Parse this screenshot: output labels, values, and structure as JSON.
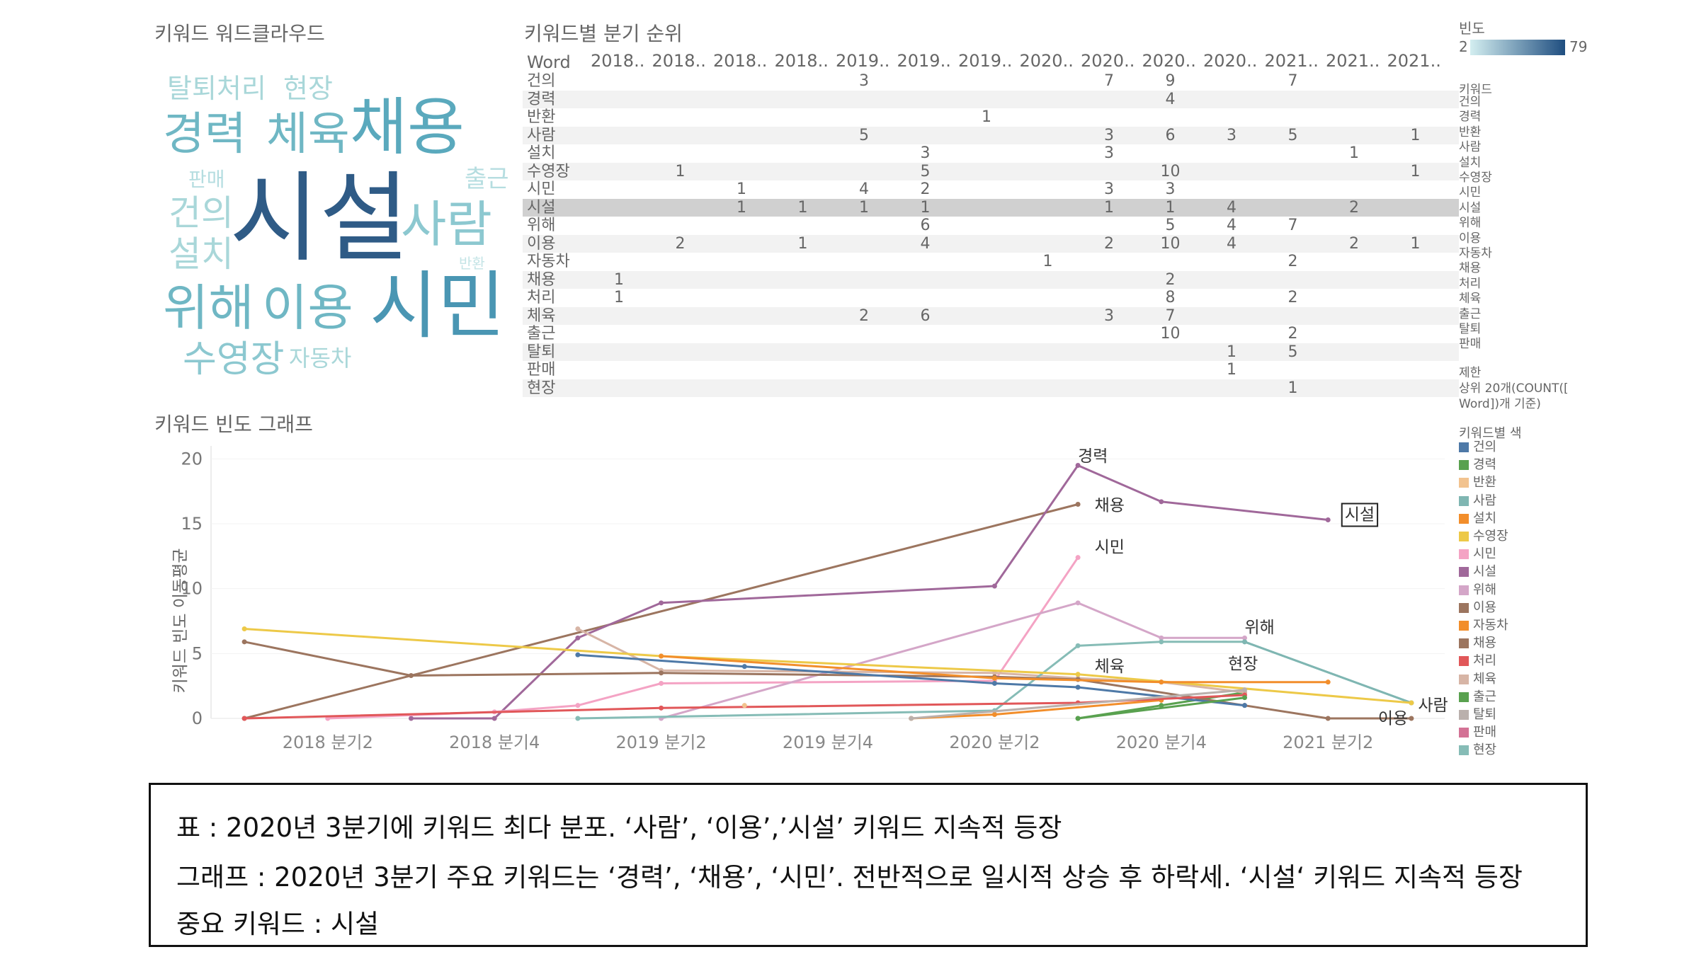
{
  "wordcloud": {
    "title": "키워드 워드클라우드",
    "words": [
      {
        "text": "탈퇴처리",
        "color": "#a9d7d9",
        "size": 38
      },
      {
        "text": "현장",
        "color": "#a9d7d9",
        "size": 38
      },
      {
        "text": "경력",
        "color": "#6fb7c4",
        "size": 64
      },
      {
        "text": "체육",
        "color": "#6fb7c4",
        "size": 64
      },
      {
        "text": "채용",
        "color": "#5aa9bd",
        "size": 88
      },
      {
        "text": "판매",
        "color": "#b5dde0",
        "size": 28
      },
      {
        "text": "출근",
        "color": "#b5dde0",
        "size": 34
      },
      {
        "text": "건의",
        "color": "#a9d7d9",
        "size": 50
      },
      {
        "text": "시설",
        "color": "#2f5b86",
        "size": 138
      },
      {
        "text": "사람",
        "color": "#8cc8d0",
        "size": 70
      },
      {
        "text": "설치",
        "color": "#a9d7d9",
        "size": 50
      },
      {
        "text": "반환",
        "color": "#c4e4e6",
        "size": 20
      },
      {
        "text": "위해",
        "color": "#6fb7c4",
        "size": 70
      },
      {
        "text": "이용",
        "color": "#6fb7c4",
        "size": 70
      },
      {
        "text": "시민",
        "color": "#4a96b3",
        "size": 104
      },
      {
        "text": "수영장",
        "color": "#8cc8d0",
        "size": 52
      },
      {
        "text": "자동차",
        "color": "#a9d7d9",
        "size": 32
      }
    ]
  },
  "rank_table": {
    "title": "키워드별 분기 순위",
    "word_header": "Word",
    "columns": [
      "2018..",
      "2018..",
      "2018..",
      "2018..",
      "2019..",
      "2019..",
      "2019..",
      "2020..",
      "2020..",
      "2020..",
      "2020..",
      "2021..",
      "2021..",
      "2021.."
    ],
    "rows": [
      {
        "word": "건의",
        "cells": [
          "",
          "",
          "",
          "",
          "3",
          "",
          "",
          "",
          "7",
          "9",
          "",
          "7",
          "",
          ""
        ]
      },
      {
        "word": "경력",
        "cells": [
          "",
          "",
          "",
          "",
          "",
          "",
          "",
          "",
          "",
          "4",
          "",
          "",
          "",
          ""
        ]
      },
      {
        "word": "반환",
        "cells": [
          "",
          "",
          "",
          "",
          "",
          "",
          "1",
          "",
          "",
          "",
          "",
          "",
          "",
          ""
        ]
      },
      {
        "word": "사람",
        "cells": [
          "",
          "",
          "",
          "",
          "5",
          "",
          "",
          "",
          "3",
          "6",
          "3",
          "5",
          "",
          "1"
        ]
      },
      {
        "word": "설치",
        "cells": [
          "",
          "",
          "",
          "",
          "",
          "3",
          "",
          "",
          "3",
          "",
          "",
          "",
          "1",
          ""
        ]
      },
      {
        "word": "수영장",
        "cells": [
          "",
          "1",
          "",
          "",
          "",
          "5",
          "",
          "",
          "",
          "10",
          "",
          "",
          "",
          "1"
        ]
      },
      {
        "word": "시민",
        "cells": [
          "",
          "",
          "1",
          "",
          "4",
          "2",
          "",
          "",
          "3",
          "3",
          "",
          "",
          "",
          ""
        ]
      },
      {
        "word": "시설",
        "cells": [
          "",
          "",
          "1",
          "1",
          "1",
          "1",
          "",
          "",
          "1",
          "1",
          "4",
          "",
          "2",
          ""
        ]
      },
      {
        "word": "위해",
        "cells": [
          "",
          "",
          "",
          "",
          "",
          "6",
          "",
          "",
          "",
          "5",
          "4",
          "7",
          "",
          ""
        ]
      },
      {
        "word": "이용",
        "cells": [
          "",
          "2",
          "",
          "1",
          "",
          "4",
          "",
          "",
          "2",
          "10",
          "4",
          "",
          "2",
          "1"
        ]
      },
      {
        "word": "자동차",
        "cells": [
          "",
          "",
          "",
          "",
          "",
          "",
          "",
          "1",
          "",
          "",
          "",
          "2",
          "",
          ""
        ]
      },
      {
        "word": "채용",
        "cells": [
          "1",
          "",
          "",
          "",
          "",
          "",
          "",
          "",
          "",
          "2",
          "",
          "",
          "",
          ""
        ]
      },
      {
        "word": "처리",
        "cells": [
          "1",
          "",
          "",
          "",
          "",
          "",
          "",
          "",
          "",
          "8",
          "",
          "2",
          "",
          ""
        ]
      },
      {
        "word": "체육",
        "cells": [
          "",
          "",
          "",
          "",
          "2",
          "6",
          "",
          "",
          "3",
          "7",
          "",
          "",
          "",
          ""
        ]
      },
      {
        "word": "출근",
        "cells": [
          "",
          "",
          "",
          "",
          "",
          "",
          "",
          "",
          "",
          "10",
          "",
          "2",
          "",
          ""
        ]
      },
      {
        "word": "탈퇴",
        "cells": [
          "",
          "",
          "",
          "",
          "",
          "",
          "",
          "",
          "",
          "",
          "1",
          "5",
          "",
          ""
        ]
      },
      {
        "word": "판매",
        "cells": [
          "",
          "",
          "",
          "",
          "",
          "",
          "",
          "",
          "",
          "",
          "1",
          "",
          "",
          ""
        ]
      },
      {
        "word": "현장",
        "cells": [
          "",
          "",
          "",
          "",
          "",
          "",
          "",
          "",
          "",
          "",
          "",
          "1",
          "",
          ""
        ]
      }
    ],
    "highlight_row": "시설"
  },
  "freq_legend": {
    "title": "빈도",
    "min": "2",
    "max": "79",
    "color_low": "#d3eef0",
    "color_high": "#1f4e80"
  },
  "filter_legend": {
    "title": "키워드",
    "items": [
      "건의",
      "경력",
      "반환",
      "사람",
      "설치",
      "수영장",
      "시민",
      "시설",
      "위해",
      "이용",
      "자동차",
      "채용",
      "처리",
      "체육",
      "출근",
      "탈퇴",
      "판매"
    ],
    "limit_title": "제한",
    "limit_text_1": "상위 20개(COUNT([",
    "limit_text_2": "Word])개 기준)"
  },
  "color_legend": {
    "title": "키워드별 색",
    "items": [
      {
        "name": "건의",
        "color": "#4e79a7"
      },
      {
        "name": "경력",
        "color": "#59a14f"
      },
      {
        "name": "반환",
        "color": "#f2c38f"
      },
      {
        "name": "사람",
        "color": "#7fb6b2"
      },
      {
        "name": "설치",
        "color": "#f28e2b"
      },
      {
        "name": "수영장",
        "color": "#edc948"
      },
      {
        "name": "시민",
        "color": "#f4a3c4"
      },
      {
        "name": "시설",
        "color": "#a0689a"
      },
      {
        "name": "위해",
        "color": "#d4a6c8"
      },
      {
        "name": "이용",
        "color": "#9c755f"
      },
      {
        "name": "자동차",
        "color": "#f28e2b"
      },
      {
        "name": "채용",
        "color": "#9c755f"
      },
      {
        "name": "처리",
        "color": "#e15759"
      },
      {
        "name": "체육",
        "color": "#d7b5a6"
      },
      {
        "name": "출근",
        "color": "#59a14f"
      },
      {
        "name": "탈퇴",
        "color": "#bab0ac"
      },
      {
        "name": "판매",
        "color": "#d37295"
      },
      {
        "name": "현장",
        "color": "#86bcb6"
      }
    ]
  },
  "chart_data": {
    "type": "line",
    "title": "키워드 빈도 그래프",
    "ylabel": "키워드 빈도 이동평균",
    "ylim": [
      0,
      21
    ],
    "x_ticks": [
      "2018 분기2",
      "2018 분기4",
      "2019 분기2",
      "2019 분기4",
      "2020 분기2",
      "2020 분기4",
      "2021 분기2"
    ],
    "x_range": [
      2017.9,
      2021.6
    ],
    "x_tick_values": [
      2018.25,
      2018.75,
      2019.25,
      2019.75,
      2020.25,
      2020.75,
      2021.25
    ],
    "y_ticks": [
      "0",
      "5",
      "10",
      "15",
      "20"
    ],
    "y_tick_values": [
      0,
      5,
      10,
      15,
      20
    ],
    "series": [
      {
        "name": "채용",
        "color": "#9c755f",
        "points": [
          [
            2018.0,
            0
          ],
          [
            2020.5,
            16.5
          ]
        ]
      },
      {
        "name": "경력",
        "color": "#59a14f",
        "points": [
          [
            2020.5,
            0
          ],
          [
            2020.75,
            1
          ],
          [
            2021.0,
            2
          ]
        ]
      },
      {
        "name": "시설",
        "color": "#a0689a",
        "points": [
          [
            2018.5,
            0
          ],
          [
            2018.75,
            0
          ],
          [
            2019.0,
            6.2
          ],
          [
            2019.25,
            8.9
          ],
          [
            2020.25,
            10.2
          ],
          [
            2020.5,
            19.5
          ],
          [
            2020.75,
            16.7
          ],
          [
            2021.25,
            15.3
          ]
        ]
      },
      {
        "name": "시민",
        "color": "#f4a3c4",
        "points": [
          [
            2018.25,
            0
          ],
          [
            2018.75,
            0.5
          ],
          [
            2019.0,
            1
          ],
          [
            2019.25,
            2.7
          ],
          [
            2020.25,
            2.9
          ],
          [
            2020.5,
            12.4
          ]
        ]
      },
      {
        "name": "위해",
        "color": "#d4a6c8",
        "points": [
          [
            2019.25,
            0
          ],
          [
            2020.5,
            8.9
          ],
          [
            2020.75,
            6.2
          ],
          [
            2021.0,
            6.2
          ]
        ]
      },
      {
        "name": "체육",
        "color": "#d7b5a6",
        "points": [
          [
            2019.0,
            6.9
          ],
          [
            2019.25,
            3.7
          ],
          [
            2020.25,
            3.5
          ],
          [
            2020.5,
            3.1
          ],
          [
            2020.75,
            2.8
          ],
          [
            2021.0,
            2.0
          ]
        ]
      },
      {
        "name": "현장",
        "color": "#86bcb6",
        "points": [
          [
            2019.0,
            0
          ],
          [
            2020.25,
            0.6
          ],
          [
            2020.5,
            5.6
          ],
          [
            2020.75,
            5.9
          ],
          [
            2021.0,
            5.9
          ],
          [
            2021.5,
            1.2
          ]
        ]
      },
      {
        "name": "사람",
        "color": "#7fb6b2",
        "points": [
          [
            2021.0,
            5.9
          ],
          [
            2021.5,
            1.2
          ]
        ]
      },
      {
        "name": "수영장",
        "color": "#edc948",
        "points": [
          [
            2018.0,
            6.9
          ],
          [
            2019.25,
            4.8
          ],
          [
            2020.5,
            3.4
          ],
          [
            2021.5,
            1.2
          ]
        ]
      },
      {
        "name": "이용",
        "color": "#9c755f",
        "points": [
          [
            2018.0,
            5.9
          ],
          [
            2018.5,
            3.3
          ],
          [
            2019.25,
            3.5
          ],
          [
            2020.25,
            3.2
          ],
          [
            2020.5,
            3.0
          ],
          [
            2021.0,
            1.0
          ],
          [
            2021.25,
            0
          ],
          [
            2021.5,
            0
          ]
        ]
      },
      {
        "name": "건의",
        "color": "#4e79a7",
        "points": [
          [
            2019.0,
            4.9
          ],
          [
            2019.5,
            4.0
          ],
          [
            2020.25,
            2.7
          ],
          [
            2020.5,
            2.4
          ],
          [
            2021.0,
            1.0
          ]
        ]
      },
      {
        "name": "설치",
        "color": "#f28e2b",
        "points": [
          [
            2019.25,
            4.8
          ],
          [
            2020.25,
            3.1
          ],
          [
            2020.75,
            2.8
          ],
          [
            2021.25,
            2.8
          ]
        ]
      },
      {
        "name": "자동차",
        "color": "#f28e2b",
        "points": [
          [
            2020.0,
            0
          ],
          [
            2020.25,
            0.3
          ],
          [
            2020.75,
            1.4
          ]
        ]
      },
      {
        "name": "처리",
        "color": "#e15759",
        "points": [
          [
            2018.0,
            0
          ],
          [
            2019.25,
            0.8
          ],
          [
            2020.5,
            1.2
          ],
          [
            2021.0,
            1.8
          ]
        ]
      },
      {
        "name": "출근",
        "color": "#59a14f",
        "points": [
          [
            2020.5,
            0
          ],
          [
            2021.0,
            1.6
          ]
        ]
      },
      {
        "name": "탈퇴",
        "color": "#bab0ac",
        "points": [
          [
            2020.0,
            0
          ],
          [
            2021.0,
            2.2
          ]
        ]
      },
      {
        "name": "반환",
        "color": "#f2c38f",
        "points": [
          [
            2019.5,
            1.0
          ]
        ]
      }
    ],
    "annotations": [
      {
        "text": "경력",
        "x": 2020.5,
        "y": 19.8,
        "boxed": false
      },
      {
        "text": "채용",
        "x": 2020.55,
        "y": 16.0,
        "boxed": false
      },
      {
        "text": "시민",
        "x": 2020.55,
        "y": 12.8,
        "boxed": false
      },
      {
        "text": "시설",
        "x": 2021.3,
        "y": 15.3,
        "boxed": true
      },
      {
        "text": "위해",
        "x": 2021.0,
        "y": 6.6,
        "boxed": false
      },
      {
        "text": "체육",
        "x": 2020.55,
        "y": 3.6,
        "boxed": false
      },
      {
        "text": "현장",
        "x": 2020.95,
        "y": 3.8,
        "boxed": false
      },
      {
        "text": "사람",
        "x": 2021.52,
        "y": 0.6,
        "boxed": false
      },
      {
        "text": "이용",
        "x": 2021.4,
        "y": -0.4,
        "boxed": false
      }
    ]
  },
  "notes": {
    "line1": "표 : 2020년 3분기에 키워드 최다 분포. ‘사람’, ‘이용’,’시설’ 키워드 지속적 등장",
    "line2": "그래프 : 2020년 3분기 주요 키워드는 ‘경력’, ‘채용’, ‘시민’. 전반적으로 일시적 상승 후 하락세. ‘시설‘ 키워드 지속적 등장",
    "line3": "중요 키워드 : 시설"
  }
}
